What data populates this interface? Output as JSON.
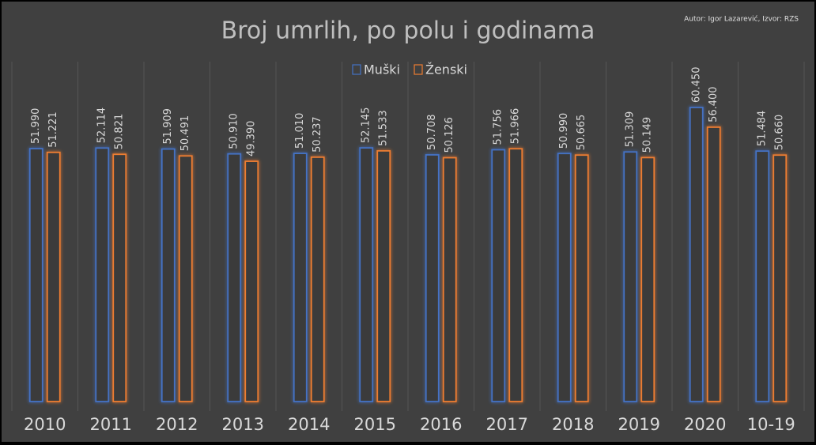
{
  "chart_data": {
    "type": "bar",
    "title": "Broj umrlih, po polu i godinama",
    "annotation": "Autor: Igor Lazarević, Izvor: RZS",
    "categories": [
      "2010",
      "2011",
      "2012",
      "2013",
      "2014",
      "2015",
      "2016",
      "2017",
      "2018",
      "2019",
      "2020",
      "10-19"
    ],
    "series": [
      {
        "name": "Muški",
        "color": "#4472c4",
        "values": [
          51990,
          52114,
          51909,
          50910,
          51010,
          52145,
          50708,
          51756,
          50990,
          51309,
          60450,
          51484
        ],
        "value_labels": [
          "51.990",
          "52.114",
          "51.909",
          "50.910",
          "51.010",
          "52.145",
          "50.708",
          "51.756",
          "50.990",
          "51.309",
          "60.450",
          "51.484"
        ]
      },
      {
        "name": "Ženski",
        "color": "#ed7d31",
        "values": [
          51221,
          50821,
          50491,
          49390,
          50237,
          51533,
          50126,
          51966,
          50665,
          50149,
          56400,
          50660
        ],
        "value_labels": [
          "51.221",
          "50.821",
          "50.491",
          "49.390",
          "50.237",
          "51.533",
          "50.126",
          "51.966",
          "50.665",
          "50.149",
          "56.400",
          "50.660"
        ]
      }
    ],
    "legend": "top"
  }
}
